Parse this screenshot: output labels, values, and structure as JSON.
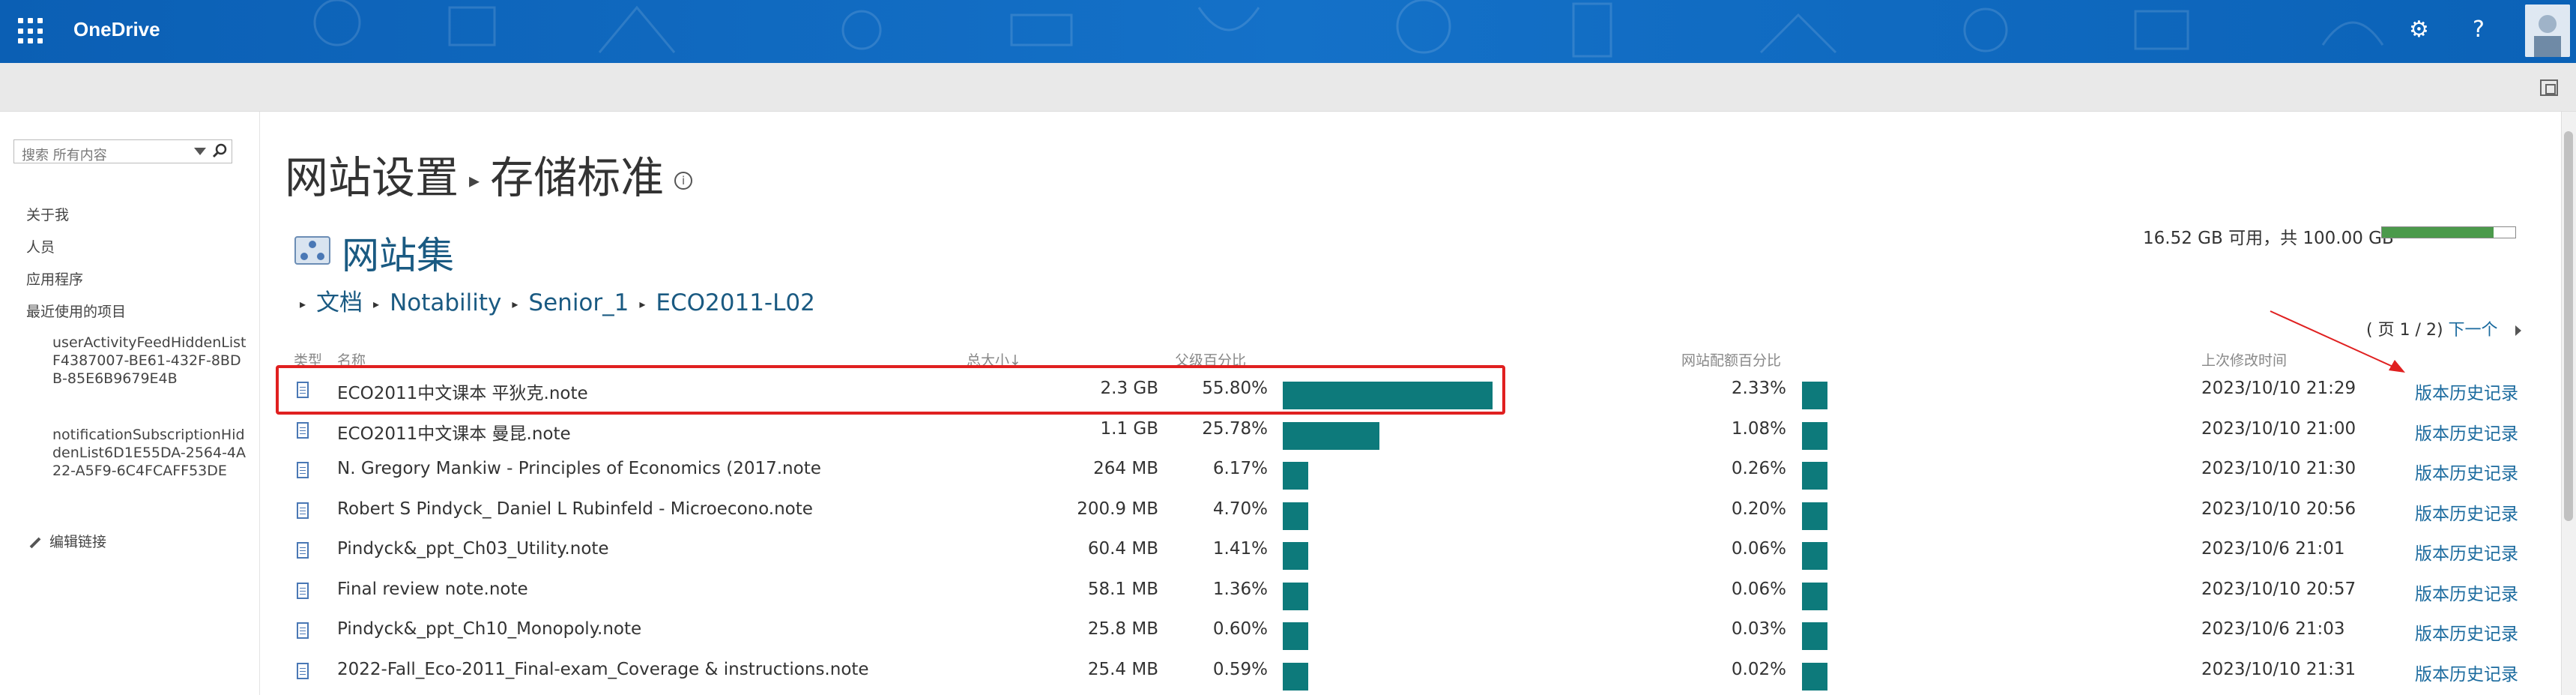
{
  "topbar": {
    "brand": "OneDrive",
    "settings_icon": "gear-icon",
    "help_label": "?",
    "waffle_icon": "app-launcher-icon"
  },
  "leftnav": {
    "search_placeholder": "搜索 所有内容",
    "links": [
      "关于我",
      "人员",
      "应用程序",
      "最近使用的项目"
    ],
    "recent": [
      "userActivityFeedHiddenListF4387007-BE61-432F-8BDB-85E6B9679E4B",
      "notificationSubscriptionHiddenList6D1E55DA-2564-4A22-A5F9-6C4FCAFF53DE"
    ],
    "edit_links": "编辑链接"
  },
  "page": {
    "title_part1": "网站设置",
    "title_part2": "存储标准",
    "info": "i",
    "site_title": "网站集",
    "breadcrumb": [
      "文档",
      "Notability",
      "Senior_1",
      "ECO2011-L02"
    ],
    "quota_text": "16.52 GB 可用，共 100.00 GB",
    "quota_used_fraction": 0.835,
    "pager_text": "( 页 1 / 2)",
    "pager_next": "下一个"
  },
  "table": {
    "headers": {
      "type": "类型",
      "name": "名称",
      "size": "总大小↓",
      "parent_pct": "父级百分比",
      "site_pct": "网站配额百分比",
      "modified": "上次修改时间"
    },
    "history_label": "版本历史记录",
    "rows": [
      {
        "name": "ECO2011中文课本 平狄克.note",
        "size": "2.3 GB",
        "parent_pct": "55.80%",
        "parent_val": 55.8,
        "site_pct": "2.33%",
        "modified": "2023/10/10 21:29"
      },
      {
        "name": "ECO2011中文课本 曼昆.note",
        "size": "1.1 GB",
        "parent_pct": "25.78%",
        "parent_val": 25.78,
        "site_pct": "1.08%",
        "modified": "2023/10/10 21:00"
      },
      {
        "name": "N. Gregory Mankiw - Principles of Economics (2017.note",
        "size": "264 MB",
        "parent_pct": "6.17%",
        "parent_val": 6.17,
        "site_pct": "0.26%",
        "modified": "2023/10/10 21:30"
      },
      {
        "name": "Robert S Pindyck_ Daniel L Rubinfeld - Microecono.note",
        "size": "200.9 MB",
        "parent_pct": "4.70%",
        "parent_val": 4.7,
        "site_pct": "0.20%",
        "modified": "2023/10/10 20:56"
      },
      {
        "name": "Pindyck&_ppt_Ch03_Utility.note",
        "size": "60.4 MB",
        "parent_pct": "1.41%",
        "parent_val": 1.41,
        "site_pct": "0.06%",
        "modified": "2023/10/6 21:01"
      },
      {
        "name": "Final review note.note",
        "size": "58.1 MB",
        "parent_pct": "1.36%",
        "parent_val": 1.36,
        "site_pct": "0.06%",
        "modified": "2023/10/10 20:57"
      },
      {
        "name": "Pindyck&_ppt_Ch10_Monopoly.note",
        "size": "25.8 MB",
        "parent_pct": "0.60%",
        "parent_val": 0.6,
        "site_pct": "0.03%",
        "modified": "2023/10/6 21:03"
      },
      {
        "name": "2022-Fall_Eco-2011_Final-exam_Coverage & instructions.note",
        "size": "25.4 MB",
        "parent_pct": "0.59%",
        "parent_val": 0.59,
        "site_pct": "0.02%",
        "modified": "2023/10/10 21:31"
      }
    ]
  }
}
